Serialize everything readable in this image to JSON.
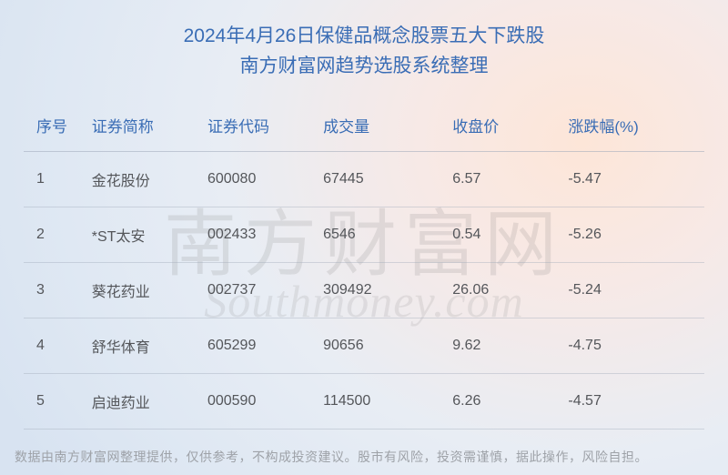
{
  "title": {
    "line1": "2024年4月26日保健品概念股票五大下跌股",
    "line2": "南方财富网趋势选股系统整理",
    "color": "#3a6db5",
    "fontsize": 21
  },
  "watermark": {
    "cn": "南方财富网",
    "en": "Southmoney.com",
    "color": "rgba(120,120,120,0.15)"
  },
  "table": {
    "header_color": "#3a6db5",
    "cell_color": "#54565a",
    "row_border_color": "rgba(160,170,185,0.4)",
    "columns": [
      {
        "key": "idx",
        "label": "序号",
        "width": "10%"
      },
      {
        "key": "name",
        "label": "证券简称",
        "width": "17%"
      },
      {
        "key": "code",
        "label": "证券代码",
        "width": "17%"
      },
      {
        "key": "vol",
        "label": "成交量",
        "width": "19%"
      },
      {
        "key": "close",
        "label": "收盘价",
        "width": "17%"
      },
      {
        "key": "pct",
        "label": "涨跌幅(%)",
        "width": "20%"
      }
    ],
    "rows": [
      {
        "idx": "1",
        "name": "金花股份",
        "code": "600080",
        "vol": "67445",
        "close": "6.57",
        "pct": "-5.47"
      },
      {
        "idx": "2",
        "name": "*ST太安",
        "code": "002433",
        "vol": "6546",
        "close": "0.54",
        "pct": "-5.26"
      },
      {
        "idx": "3",
        "name": "葵花药业",
        "code": "002737",
        "vol": "309492",
        "close": "26.06",
        "pct": "-5.24"
      },
      {
        "idx": "4",
        "name": "舒华体育",
        "code": "605299",
        "vol": "90656",
        "close": "9.62",
        "pct": "-4.75"
      },
      {
        "idx": "5",
        "name": "启迪药业",
        "code": "000590",
        "vol": "114500",
        "close": "6.26",
        "pct": "-4.57"
      }
    ]
  },
  "footnote": "数据由南方财富网整理提供，仅供参考，不构成投资建议。股市有风险，投资需谨慎，据此操作，风险自担。",
  "background": {
    "gradient_stops": [
      "#fde6d8",
      "#f7e9e6",
      "#e8edf4",
      "#dfe8f3",
      "#d8e3f1"
    ]
  }
}
